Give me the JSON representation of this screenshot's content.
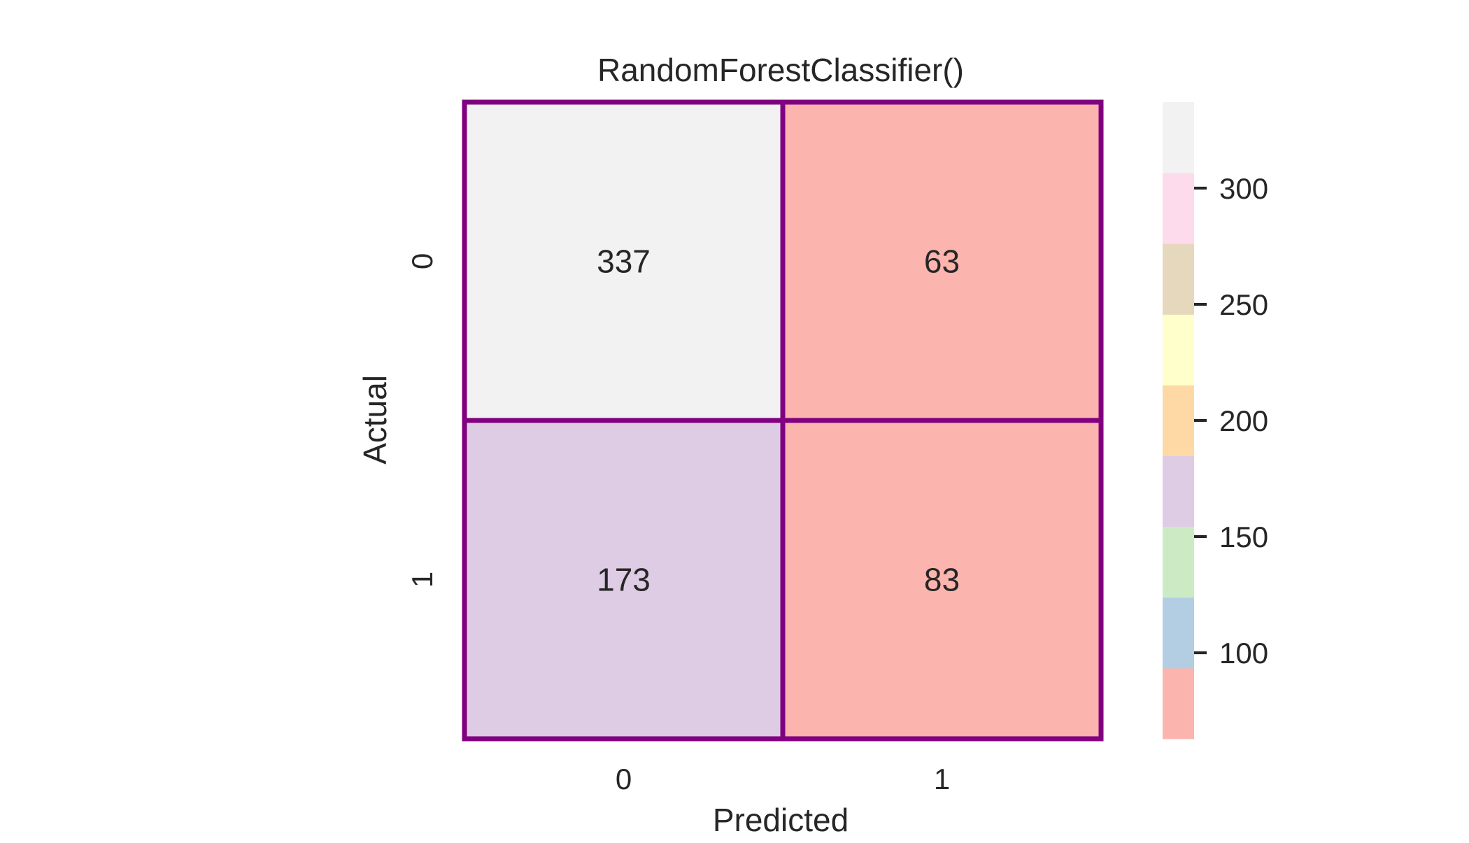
{
  "chart_data": {
    "type": "heatmap",
    "title": "RandomForestClassifier()",
    "xlabel": "Predicted",
    "ylabel": "Actual",
    "x_categories": [
      "0",
      "1"
    ],
    "y_categories": [
      "0",
      "1"
    ],
    "values": [
      [
        337,
        63
      ],
      [
        173,
        83
      ]
    ],
    "colorbar": {
      "range": [
        63,
        337
      ],
      "ticks": [
        100,
        150,
        200,
        250,
        300
      ],
      "tick_labels": [
        "100",
        "150",
        "200",
        "250",
        "300"
      ],
      "palette": [
        "#fbb4ae",
        "#b3cde3",
        "#ccebc5",
        "#decbe4",
        "#fed9a6",
        "#ffffcc",
        "#e5d8bd",
        "#fddaec",
        "#f2f2f2"
      ]
    },
    "cell_border_color": "#800080",
    "grid": false,
    "legend": "colorbar-right"
  }
}
